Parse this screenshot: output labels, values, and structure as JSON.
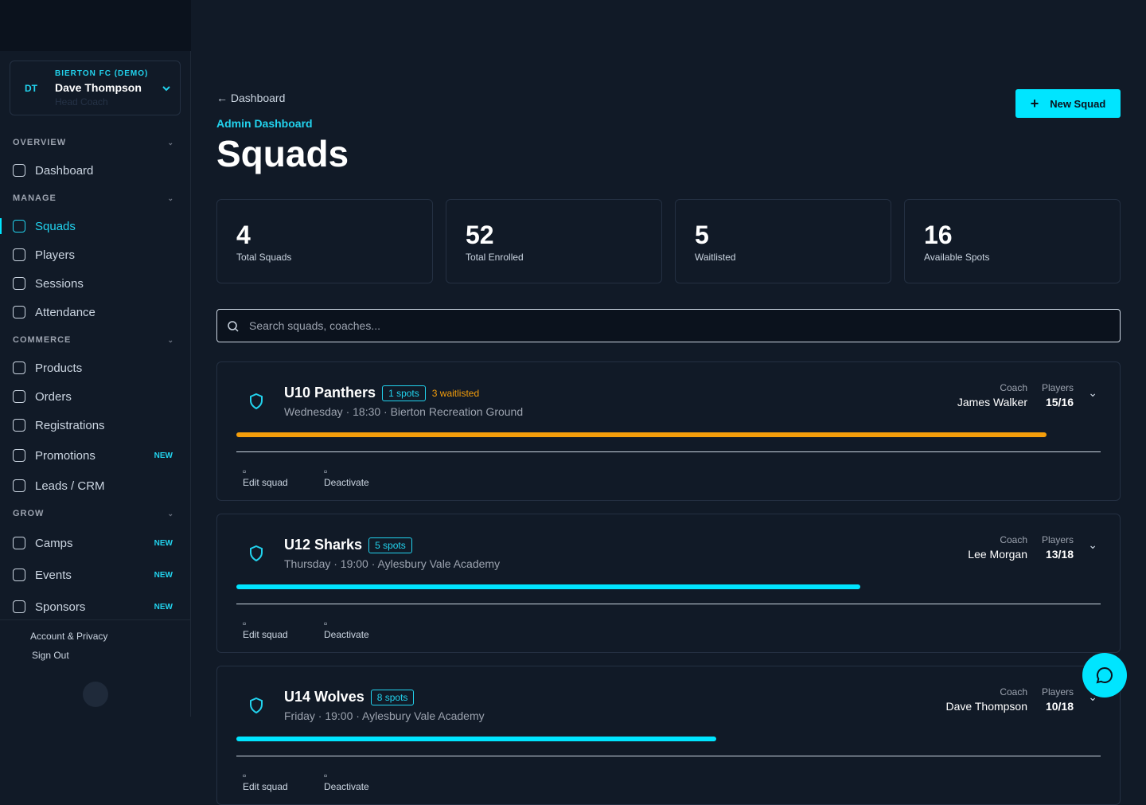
{
  "sidebar": {
    "org": "BIERTON FC (DEMO)",
    "initials": "DT",
    "user": "Dave Thompson",
    "role": "Head Coach",
    "sections": [
      {
        "title": "OVERVIEW",
        "items": [
          {
            "label": "Dashboard"
          }
        ]
      },
      {
        "title": "MANAGE",
        "items": [
          {
            "label": "Squads",
            "active": true
          },
          {
            "label": "Players"
          },
          {
            "label": "Sessions"
          },
          {
            "label": "Attendance"
          }
        ]
      },
      {
        "title": "COMMERCE",
        "items": [
          {
            "label": "Products"
          },
          {
            "label": "Orders"
          },
          {
            "label": "Registrations"
          },
          {
            "label": "Promotions",
            "badge": "NEW"
          },
          {
            "label": "Leads / CRM"
          }
        ]
      },
      {
        "title": "GROW",
        "items": [
          {
            "label": "Camps",
            "badge": "NEW"
          },
          {
            "label": "Events",
            "badge": "NEW"
          },
          {
            "label": "Sponsors",
            "badge": "NEW"
          }
        ]
      }
    ],
    "footer": [
      "Account & Privacy",
      "Sign Out"
    ]
  },
  "header": {
    "back": "Dashboard",
    "breadcrumb": "Admin Dashboard",
    "title": "Squads",
    "button": "New Squad"
  },
  "stats": [
    {
      "value": 4,
      "label": "Total Squads"
    },
    {
      "value": 52,
      "label": "Total Enrolled"
    },
    {
      "value": 5,
      "label": "Waitlisted"
    },
    {
      "value": 16,
      "label": "Available Spots"
    }
  ],
  "search": {
    "placeholder": "Search squads, coaches..."
  },
  "labels": {
    "coach": "Coach",
    "players": "Players",
    "edit": "Edit squad",
    "deactivate": "Deactivate"
  },
  "squads": [
    {
      "name": "U10 Panthers",
      "spots": "1 spots",
      "waitlist": "3 waitlisted",
      "schedule": "Wednesday · 18:30 · Bierton Recreation Ground",
      "coach": "James Walker",
      "players": "15/16",
      "bar_color": "#f59e0b"
    },
    {
      "name": "U12 Sharks",
      "spots": "5 spots",
      "schedule": "Thursday · 19:00 · Aylesbury Vale Academy",
      "coach": "Lee Morgan",
      "players": "13/18",
      "bar_color": "#00e5ff"
    },
    {
      "name": "U14 Wolves",
      "spots": "8 spots",
      "schedule": "Friday · 19:00 · Aylesbury Vale Academy",
      "coach": "Dave Thompson",
      "players": "10/18",
      "bar_color": "#00e5ff"
    }
  ]
}
